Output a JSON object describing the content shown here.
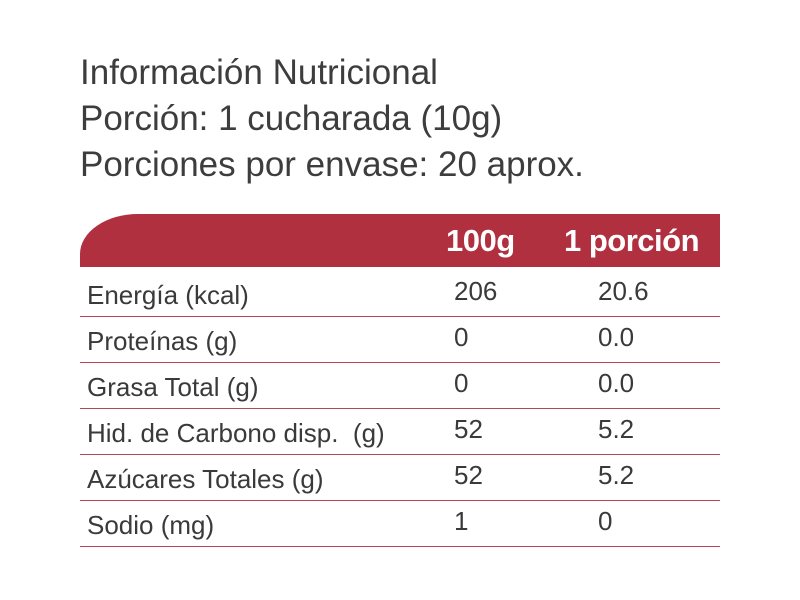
{
  "heading": {
    "title": "Información Nutricional",
    "portion": "Porción: 1 cucharada (10g)",
    "servings": "Porciones por envase: 20 aprox."
  },
  "colors": {
    "header_bg": "#b0303f",
    "header_text": "#ffffff",
    "row_rule": "#b64555",
    "text": "#3a3a3a"
  },
  "table": {
    "columns": [
      "",
      "100g",
      "1 porción"
    ],
    "rows": [
      {
        "label": "Energía (kcal)",
        "per_100g": "206",
        "per_portion": "20.6"
      },
      {
        "label": "Proteínas (g)",
        "per_100g": "0",
        "per_portion": "0.0"
      },
      {
        "label": "Grasa Total (g)",
        "per_100g": "0",
        "per_portion": "0.0"
      },
      {
        "label": "Hid. de Carbono disp.  (g)",
        "per_100g": "52",
        "per_portion": "5.2"
      },
      {
        "label": "Azúcares Totales (g)",
        "per_100g": "52",
        "per_portion": "5.2"
      },
      {
        "label": "Sodio (mg)",
        "per_100g": "1",
        "per_portion": "0"
      }
    ]
  }
}
